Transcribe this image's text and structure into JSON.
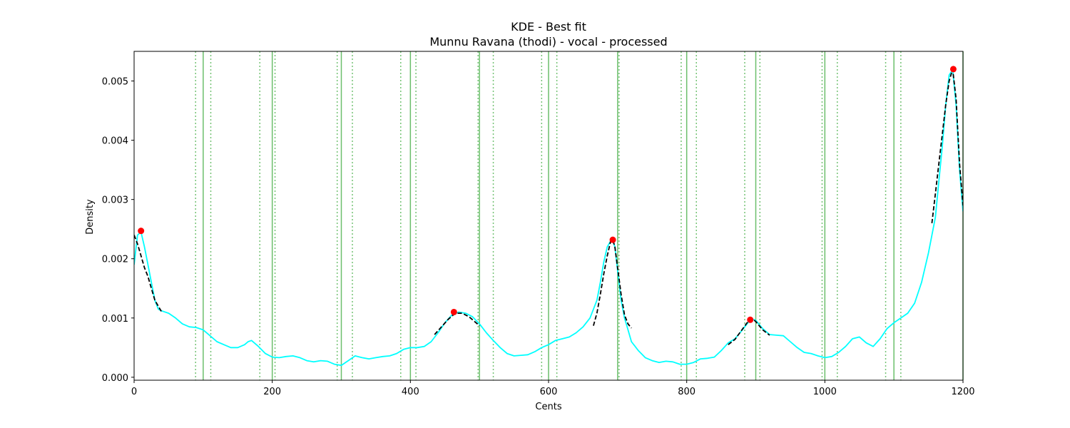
{
  "chart_data": {
    "type": "line",
    "title": "KDE - Best fit",
    "subtitle": "Munnu Ravana (thodi) - vocal - processed",
    "xlabel": "Cents",
    "ylabel": "Density",
    "xlim": [
      0,
      1200
    ],
    "ylim": [
      -5e-05,
      0.0055
    ],
    "xticks": [
      0,
      200,
      400,
      600,
      800,
      1000,
      1200
    ],
    "yticks": [
      0.0,
      0.001,
      0.002,
      0.003,
      0.004,
      0.005
    ],
    "ytick_labels": [
      "0.000",
      "0.001",
      "0.002",
      "0.003",
      "0.004",
      "0.005"
    ],
    "grid": false,
    "colors": {
      "kde": "#00ffff",
      "fit": "#000000",
      "peaks": "#ff0000",
      "reference_solid": "#5cb85c",
      "reference_dotted": "#5cb85c"
    },
    "reference_lines_solid": [
      100,
      200,
      300,
      400,
      500,
      600,
      700,
      800,
      900,
      1000,
      1100,
      1200
    ],
    "reference_lines_dotted": [
      89,
      111,
      182,
      204,
      294,
      316,
      386,
      408,
      498,
      520,
      590,
      612,
      702,
      792,
      814,
      884,
      906,
      996,
      1018,
      1088,
      1110
    ],
    "kde": {
      "x": [
        0,
        5,
        10,
        15,
        20,
        25,
        30,
        35,
        40,
        50,
        60,
        70,
        80,
        90,
        100,
        110,
        120,
        130,
        140,
        150,
        160,
        165,
        170,
        180,
        190,
        200,
        210,
        220,
        230,
        240,
        250,
        260,
        270,
        280,
        290,
        300,
        310,
        320,
        330,
        340,
        350,
        360,
        370,
        380,
        390,
        400,
        410,
        420,
        430,
        440,
        450,
        460,
        470,
        480,
        490,
        500,
        510,
        520,
        530,
        540,
        550,
        560,
        570,
        580,
        590,
        600,
        610,
        620,
        630,
        640,
        650,
        660,
        670,
        675,
        680,
        685,
        690,
        693,
        696,
        700,
        705,
        710,
        715,
        720,
        730,
        740,
        750,
        760,
        770,
        780,
        790,
        800,
        810,
        820,
        830,
        840,
        850,
        860,
        870,
        880,
        890,
        895,
        900,
        910,
        920,
        930,
        940,
        950,
        960,
        970,
        980,
        990,
        1000,
        1010,
        1020,
        1030,
        1040,
        1050,
        1060,
        1070,
        1080,
        1090,
        1100,
        1110,
        1120,
        1130,
        1140,
        1150,
        1160,
        1165,
        1170,
        1175,
        1180,
        1185,
        1190,
        1195,
        1200
      ],
      "y": [
        0.0019,
        0.0024,
        0.00245,
        0.0022,
        0.0019,
        0.0016,
        0.0013,
        0.00115,
        0.00112,
        0.00108,
        0.001,
        0.0009,
        0.00085,
        0.00084,
        0.0008,
        0.0007,
        0.0006,
        0.00055,
        0.0005,
        0.0005,
        0.00055,
        0.0006,
        0.00062,
        0.00052,
        0.0004,
        0.00034,
        0.00033,
        0.00035,
        0.00036,
        0.00033,
        0.00028,
        0.00026,
        0.00028,
        0.00027,
        0.00022,
        0.0002,
        0.00028,
        0.00036,
        0.00033,
        0.00031,
        0.00033,
        0.00035,
        0.00036,
        0.0004,
        0.00047,
        0.0005,
        0.0005,
        0.00052,
        0.0006,
        0.00075,
        0.00092,
        0.00105,
        0.0011,
        0.00108,
        0.00102,
        0.0009,
        0.00075,
        0.00062,
        0.0005,
        0.0004,
        0.00036,
        0.00037,
        0.00038,
        0.00043,
        0.0005,
        0.00055,
        0.00062,
        0.00065,
        0.00068,
        0.00075,
        0.00085,
        0.001,
        0.0013,
        0.0016,
        0.00195,
        0.0022,
        0.0023,
        0.0023,
        0.0022,
        0.0018,
        0.0013,
        0.001,
        0.0008,
        0.0006,
        0.00045,
        0.00033,
        0.00028,
        0.00025,
        0.00027,
        0.00026,
        0.00022,
        0.00022,
        0.00025,
        0.00031,
        0.00032,
        0.00034,
        0.00045,
        0.00058,
        0.00065,
        0.00079,
        0.00094,
        0.00098,
        0.00096,
        0.00082,
        0.00072,
        0.00071,
        0.0007,
        0.0006,
        0.0005,
        0.00042,
        0.0004,
        0.00036,
        0.00033,
        0.00035,
        0.00042,
        0.00052,
        0.00065,
        0.00068,
        0.00058,
        0.00052,
        0.00065,
        0.00082,
        0.00092,
        0.001,
        0.00108,
        0.00125,
        0.0016,
        0.0021,
        0.0027,
        0.0033,
        0.0039,
        0.0046,
        0.0051,
        0.00519,
        0.0046,
        0.0035,
        0.0028
      ]
    },
    "fit_segments": [
      {
        "x": [
          0,
          5,
          10,
          15,
          20,
          25,
          30,
          35,
          40
        ],
        "y": [
          0.0024,
          0.00225,
          0.00205,
          0.00185,
          0.0017,
          0.0015,
          0.0013,
          0.0012,
          0.0011
        ]
      },
      {
        "x": [
          435,
          445,
          455,
          465,
          475,
          485,
          495,
          500
        ],
        "y": [
          0.00072,
          0.00085,
          0.00098,
          0.00108,
          0.00108,
          0.00102,
          0.00092,
          0.00087
        ]
      },
      {
        "x": [
          665,
          670,
          675,
          680,
          685,
          690,
          693,
          696,
          700,
          705,
          710,
          715,
          720
        ],
        "y": [
          0.00087,
          0.00108,
          0.0014,
          0.00175,
          0.00205,
          0.0023,
          0.00232,
          0.0022,
          0.00185,
          0.0014,
          0.00105,
          0.0009,
          0.00083
        ]
      },
      {
        "x": [
          860,
          870,
          880,
          890,
          895,
          900,
          910,
          920
        ],
        "y": [
          0.00055,
          0.00064,
          0.0008,
          0.00096,
          0.00099,
          0.00094,
          0.0008,
          0.00071
        ]
      },
      {
        "x": [
          1155,
          1160,
          1165,
          1170,
          1175,
          1180,
          1185,
          1190,
          1195,
          1200
        ],
        "y": [
          0.0026,
          0.0031,
          0.0036,
          0.0041,
          0.0046,
          0.005,
          0.0052,
          0.0047,
          0.0036,
          0.0029
        ]
      }
    ],
    "peaks": {
      "x": [
        10,
        463,
        693,
        892,
        1186
      ],
      "y": [
        0.00247,
        0.0011,
        0.00232,
        0.00097,
        0.0052
      ]
    }
  }
}
